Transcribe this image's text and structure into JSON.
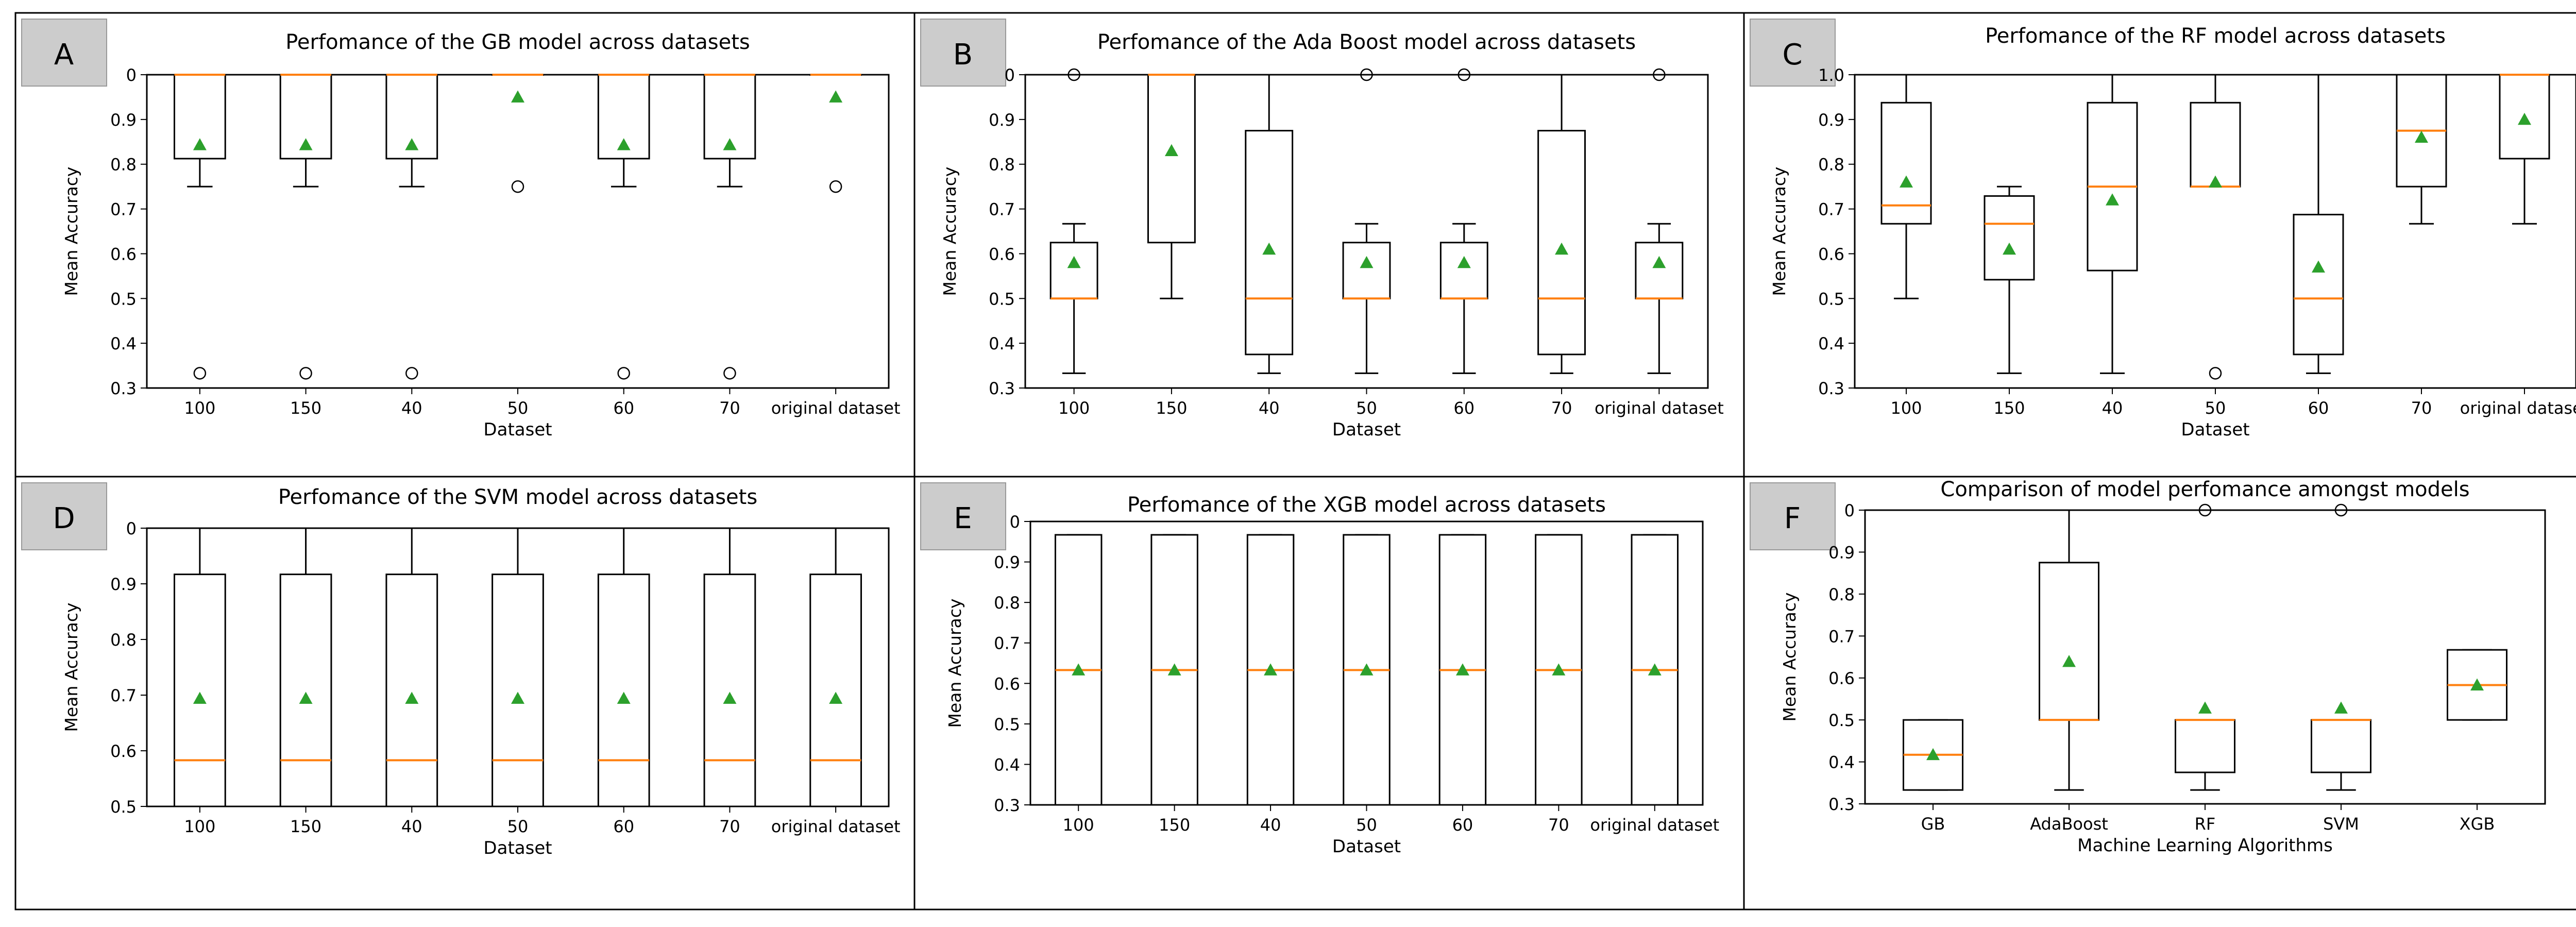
{
  "colors": {
    "box": "#000000",
    "median": "#ff7f0e",
    "mean": "#2ca02c",
    "badge": "#cccccc",
    "badgeBorder": "#999999",
    "frame": "#000000"
  },
  "chart_data": [
    {
      "panel": "A",
      "type": "box",
      "title": "Perfomance of the GB model across datasets",
      "xlabel": "Dataset",
      "ylabel": "Mean Accuracy",
      "ylim": [
        0.3,
        1.0
      ],
      "yticks": [
        0.3,
        0.4,
        0.5,
        0.6,
        0.7,
        0.8,
        0.9,
        1.0
      ],
      "ytick_labels": [
        "0.3",
        "0.4",
        "0.5",
        "0.6",
        "0.7",
        "0.8",
        "0.9",
        "0"
      ],
      "categories": [
        "100",
        "150",
        "40",
        "50",
        "60",
        "70",
        "original dataset"
      ],
      "boxes": [
        {
          "lo": 0.75,
          "q1": 0.8125,
          "med": 1.0,
          "q3": 1.0,
          "hi": 1.0,
          "mean": 0.8433,
          "fliers": [
            0.333
          ]
        },
        {
          "lo": 0.75,
          "q1": 0.8125,
          "med": 1.0,
          "q3": 1.0,
          "hi": 1.0,
          "mean": 0.8433,
          "fliers": [
            0.333
          ]
        },
        {
          "lo": 0.75,
          "q1": 0.8125,
          "med": 1.0,
          "q3": 1.0,
          "hi": 1.0,
          "mean": 0.8433,
          "fliers": [
            0.333
          ]
        },
        {
          "lo": 1.0,
          "q1": 1.0,
          "med": 1.0,
          "q3": 1.0,
          "hi": 1.0,
          "mean": 0.95,
          "fliers": [
            0.75
          ]
        },
        {
          "lo": 0.75,
          "q1": 0.8125,
          "med": 1.0,
          "q3": 1.0,
          "hi": 1.0,
          "mean": 0.8433,
          "fliers": [
            0.333
          ]
        },
        {
          "lo": 0.75,
          "q1": 0.8125,
          "med": 1.0,
          "q3": 1.0,
          "hi": 1.0,
          "mean": 0.8433,
          "fliers": [
            0.333
          ]
        },
        {
          "lo": 1.0,
          "q1": 1.0,
          "med": 1.0,
          "q3": 1.0,
          "hi": 1.0,
          "mean": 0.95,
          "fliers": [
            0.75
          ]
        }
      ]
    },
    {
      "panel": "B",
      "type": "box",
      "title": "Perfomance of the Ada Boost model across datasets",
      "xlabel": "Dataset",
      "ylabel": "Mean Accuracy",
      "ylim": [
        0.3,
        1.0
      ],
      "yticks": [
        0.3,
        0.4,
        0.5,
        0.6,
        0.7,
        0.8,
        0.9,
        1.0
      ],
      "ytick_labels": [
        "0.3",
        "0.4",
        "0.5",
        "0.6",
        "0.7",
        "0.8",
        "0.9",
        "0"
      ],
      "categories": [
        "100",
        "150",
        "40",
        "50",
        "60",
        "70",
        "original dataset"
      ],
      "boxes": [
        {
          "lo": 0.333,
          "q1": 0.5,
          "med": 0.5,
          "q3": 0.625,
          "hi": 0.667,
          "mean": 0.58,
          "fliers": [
            1.0
          ]
        },
        {
          "lo": 0.5,
          "q1": 0.625,
          "med": 1.0,
          "q3": 1.0,
          "hi": 1.0,
          "mean": 0.83,
          "fliers": []
        },
        {
          "lo": 0.333,
          "q1": 0.375,
          "med": 0.5,
          "q3": 0.875,
          "hi": 1.0,
          "mean": 0.61,
          "fliers": []
        },
        {
          "lo": 0.333,
          "q1": 0.5,
          "med": 0.5,
          "q3": 0.625,
          "hi": 0.667,
          "mean": 0.58,
          "fliers": [
            1.0
          ]
        },
        {
          "lo": 0.333,
          "q1": 0.5,
          "med": 0.5,
          "q3": 0.625,
          "hi": 0.667,
          "mean": 0.58,
          "fliers": [
            1.0
          ]
        },
        {
          "lo": 0.333,
          "q1": 0.375,
          "med": 0.5,
          "q3": 0.875,
          "hi": 1.0,
          "mean": 0.61,
          "fliers": []
        },
        {
          "lo": 0.333,
          "q1": 0.5,
          "med": 0.5,
          "q3": 0.625,
          "hi": 0.667,
          "mean": 0.58,
          "fliers": [
            1.0
          ]
        }
      ]
    },
    {
      "panel": "C",
      "type": "box",
      "title": "Perfomance of the RF model across datasets",
      "xlabel": "Dataset",
      "ylabel": "Mean Accuracy",
      "ylim": [
        0.3,
        1.0
      ],
      "yticks": [
        0.3,
        0.4,
        0.5,
        0.6,
        0.7,
        0.8,
        0.9,
        1.0
      ],
      "ytick_labels": [
        "0.3",
        "0.4",
        "0.5",
        "0.6",
        "0.7",
        "0.8",
        "0.9",
        "1.0"
      ],
      "categories": [
        "100",
        "150",
        "40",
        "50",
        "60",
        "70",
        "original dataset"
      ],
      "boxes": [
        {
          "lo": 0.5,
          "q1": 0.667,
          "med": 0.708,
          "q3": 0.9375,
          "hi": 1.0,
          "mean": 0.76,
          "fliers": []
        },
        {
          "lo": 0.333,
          "q1": 0.542,
          "med": 0.667,
          "q3": 0.729,
          "hi": 0.75,
          "mean": 0.61,
          "fliers": []
        },
        {
          "lo": 0.333,
          "q1": 0.5625,
          "med": 0.75,
          "q3": 0.9375,
          "hi": 1.0,
          "mean": 0.72,
          "fliers": []
        },
        {
          "lo": 0.75,
          "q1": 0.75,
          "med": 0.75,
          "q3": 0.9375,
          "hi": 1.0,
          "mean": 0.76,
          "fliers": [
            0.333
          ]
        },
        {
          "lo": 0.333,
          "q1": 0.375,
          "med": 0.5,
          "q3": 0.6875,
          "hi": 1.0,
          "mean": 0.57,
          "fliers": []
        },
        {
          "lo": 0.667,
          "q1": 0.75,
          "med": 0.875,
          "q3": 1.0,
          "hi": 1.0,
          "mean": 0.86,
          "fliers": []
        },
        {
          "lo": 0.667,
          "q1": 0.8125,
          "med": 1.0,
          "q3": 1.0,
          "hi": 1.0,
          "mean": 0.9,
          "fliers": []
        }
      ]
    },
    {
      "panel": "D",
      "type": "box",
      "title": "Perfomance of the SVM model across datasets",
      "xlabel": "Dataset",
      "ylabel": "Mean Accuracy",
      "ylim": [
        0.5,
        1.0
      ],
      "yticks": [
        0.5,
        0.6,
        0.7,
        0.8,
        0.9,
        1.0
      ],
      "ytick_labels": [
        "0.5",
        "0.6",
        "0.7",
        "0.8",
        "0.9",
        "0"
      ],
      "categories": [
        "100",
        "150",
        "40",
        "50",
        "60",
        "70",
        "original dataset"
      ],
      "boxes": [
        {
          "lo": 0.5,
          "q1": 0.5,
          "med": 0.583,
          "q3": 0.917,
          "hi": 1.0,
          "mean": 0.694,
          "fliers": []
        },
        {
          "lo": 0.5,
          "q1": 0.5,
          "med": 0.583,
          "q3": 0.917,
          "hi": 1.0,
          "mean": 0.694,
          "fliers": []
        },
        {
          "lo": 0.5,
          "q1": 0.5,
          "med": 0.583,
          "q3": 0.917,
          "hi": 1.0,
          "mean": 0.694,
          "fliers": []
        },
        {
          "lo": 0.5,
          "q1": 0.5,
          "med": 0.583,
          "q3": 0.917,
          "hi": 1.0,
          "mean": 0.694,
          "fliers": []
        },
        {
          "lo": 0.5,
          "q1": 0.5,
          "med": 0.583,
          "q3": 0.917,
          "hi": 1.0,
          "mean": 0.694,
          "fliers": []
        },
        {
          "lo": 0.5,
          "q1": 0.5,
          "med": 0.583,
          "q3": 0.917,
          "hi": 1.0,
          "mean": 0.694,
          "fliers": []
        },
        {
          "lo": 0.5,
          "q1": 0.5,
          "med": 0.583,
          "q3": 0.917,
          "hi": 1.0,
          "mean": 0.694,
          "fliers": []
        }
      ]
    },
    {
      "panel": "E",
      "type": "box",
      "title": "Perfomance of the XGB model across datasets",
      "xlabel": "Dataset",
      "ylabel": "Mean Accuracy",
      "ylim": [
        0.3,
        1.0
      ],
      "yticks": [
        0.3,
        0.4,
        0.5,
        0.6,
        0.7,
        0.8,
        0.9,
        1.0
      ],
      "ytick_labels": [
        "0.3",
        "0.4",
        "0.5",
        "0.6",
        "0.7",
        "0.8",
        "0.9",
        "0"
      ],
      "categories": [
        "100",
        "150",
        "40",
        "50",
        "60",
        "70",
        "original dataset"
      ],
      "boxes": [
        {
          "lo": 0.3,
          "q1": 0.3,
          "med": 0.633,
          "q3": 0.967,
          "hi": 0.967,
          "mean": 0.633,
          "fliers": []
        },
        {
          "lo": 0.3,
          "q1": 0.3,
          "med": 0.633,
          "q3": 0.967,
          "hi": 0.967,
          "mean": 0.633,
          "fliers": []
        },
        {
          "lo": 0.3,
          "q1": 0.3,
          "med": 0.633,
          "q3": 0.967,
          "hi": 0.967,
          "mean": 0.633,
          "fliers": []
        },
        {
          "lo": 0.3,
          "q1": 0.3,
          "med": 0.633,
          "q3": 0.967,
          "hi": 0.967,
          "mean": 0.633,
          "fliers": []
        },
        {
          "lo": 0.3,
          "q1": 0.3,
          "med": 0.633,
          "q3": 0.967,
          "hi": 0.967,
          "mean": 0.633,
          "fliers": []
        },
        {
          "lo": 0.3,
          "q1": 0.3,
          "med": 0.633,
          "q3": 0.967,
          "hi": 0.967,
          "mean": 0.633,
          "fliers": []
        },
        {
          "lo": 0.3,
          "q1": 0.3,
          "med": 0.633,
          "q3": 0.967,
          "hi": 0.967,
          "mean": 0.633,
          "fliers": []
        }
      ]
    },
    {
      "panel": "F",
      "type": "box",
      "title": "Comparison of model perfomance amongst models",
      "xlabel": "Machine Learning Algorithms",
      "ylabel": "Mean Accuracy",
      "ylim": [
        0.3,
        1.0
      ],
      "yticks": [
        0.3,
        0.4,
        0.5,
        0.6,
        0.7,
        0.8,
        0.9,
        1.0
      ],
      "ytick_labels": [
        "0.3",
        "0.4",
        "0.5",
        "0.6",
        "0.7",
        "0.8",
        "0.9",
        "0"
      ],
      "categories": [
        "GB",
        "AdaBoost",
        "RF",
        "SVM",
        "XGB"
      ],
      "boxes": [
        {
          "lo": 0.333,
          "q1": 0.333,
          "med": 0.417,
          "q3": 0.5,
          "hi": 0.5,
          "mean": 0.417,
          "fliers": []
        },
        {
          "lo": 0.333,
          "q1": 0.5,
          "med": 0.5,
          "q3": 0.875,
          "hi": 1.0,
          "mean": 0.639,
          "fliers": []
        },
        {
          "lo": 0.333,
          "q1": 0.375,
          "med": 0.5,
          "q3": 0.5,
          "hi": 0.5,
          "mean": 0.528,
          "fliers": [
            1.0
          ]
        },
        {
          "lo": 0.333,
          "q1": 0.375,
          "med": 0.5,
          "q3": 0.5,
          "hi": 0.5,
          "mean": 0.528,
          "fliers": [
            1.0
          ]
        },
        {
          "lo": 0.5,
          "q1": 0.5,
          "med": 0.583,
          "q3": 0.667,
          "hi": 0.667,
          "mean": 0.583,
          "fliers": []
        }
      ]
    }
  ]
}
